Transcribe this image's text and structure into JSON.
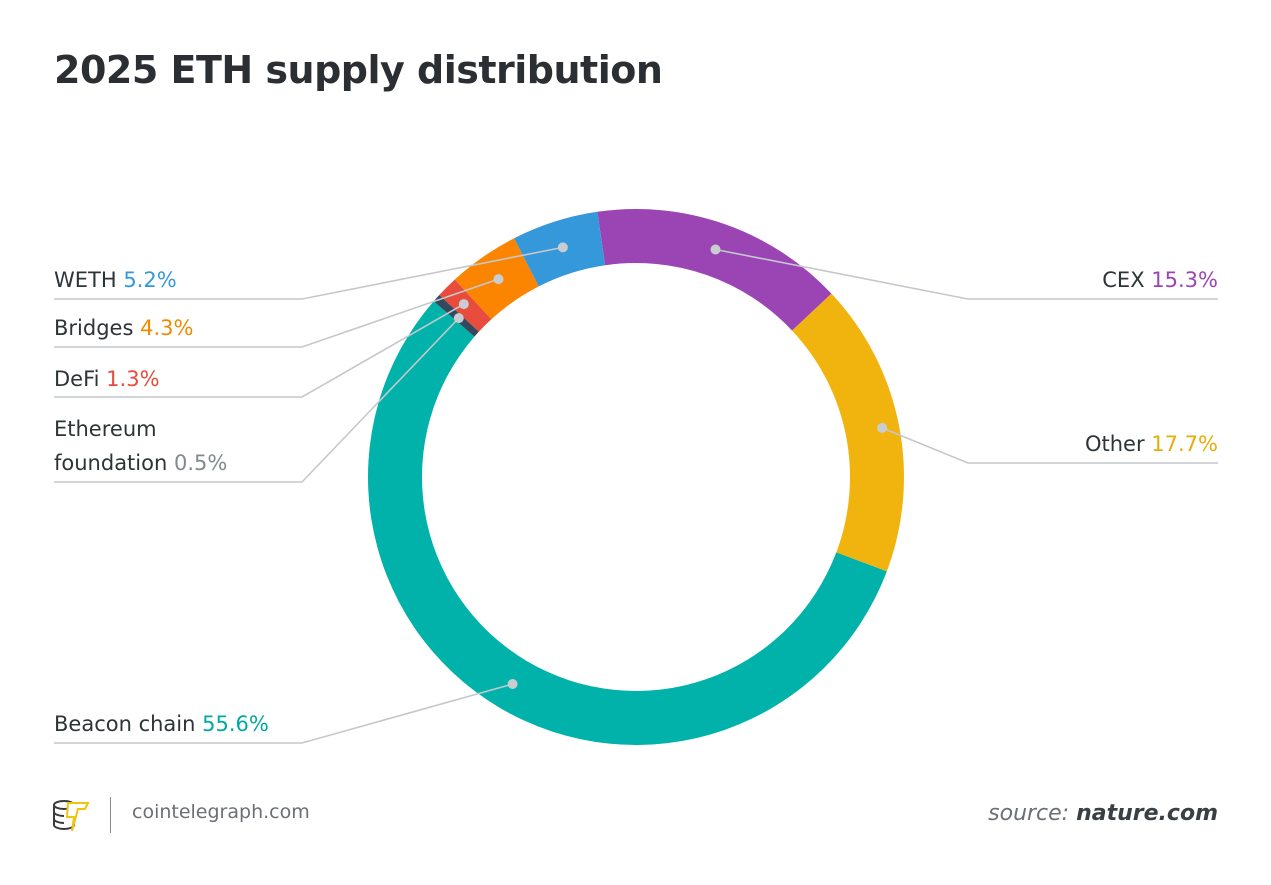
{
  "chart_data": {
    "type": "pie",
    "subtype": "donut",
    "title": "2025 ETH supply distribution",
    "legend": "leader-line labels around donut",
    "slices": [
      {
        "label": "CEX",
        "value": 15.3,
        "display": "15.3%",
        "color": "#9b45b5",
        "text_color": "#9b45b5"
      },
      {
        "label": "Other",
        "value": 17.7,
        "display": "17.7%",
        "color": "#f1b40f",
        "text_color": "#e8ac0a"
      },
      {
        "label": "Beacon chain",
        "value": 55.6,
        "display": "55.6%",
        "color": "#00b2a9",
        "text_color": "#00a99f"
      },
      {
        "label": "Ethereum foundation",
        "value": 0.5,
        "display": "0.5%",
        "color": "#34495e",
        "text_color": "#7f8c8d"
      },
      {
        "label": "DeFi",
        "value": 1.3,
        "display": "1.3%",
        "color": "#e74c3c",
        "text_color": "#e74c3c"
      },
      {
        "label": "Bridges",
        "value": 4.3,
        "display": "4.3%",
        "color": "#fb8500",
        "text_color": "#f28a00"
      },
      {
        "label": "WETH",
        "value": 5.2,
        "display": "5.2%",
        "color": "#3498db",
        "text_color": "#3498db"
      }
    ]
  },
  "labels": {
    "cex": "CEX",
    "other": "Other",
    "beacon": "Beacon chain",
    "foundation_1": "Ethereum",
    "foundation_2": "foundation",
    "defi": "DeFi",
    "bridges": "Bridges",
    "weth": "WETH"
  },
  "footer": {
    "site": "cointelegraph.com",
    "source_prefix": "source:",
    "source_name": "nature.com",
    "logo_icon": "cointelegraph-logo-icon"
  }
}
